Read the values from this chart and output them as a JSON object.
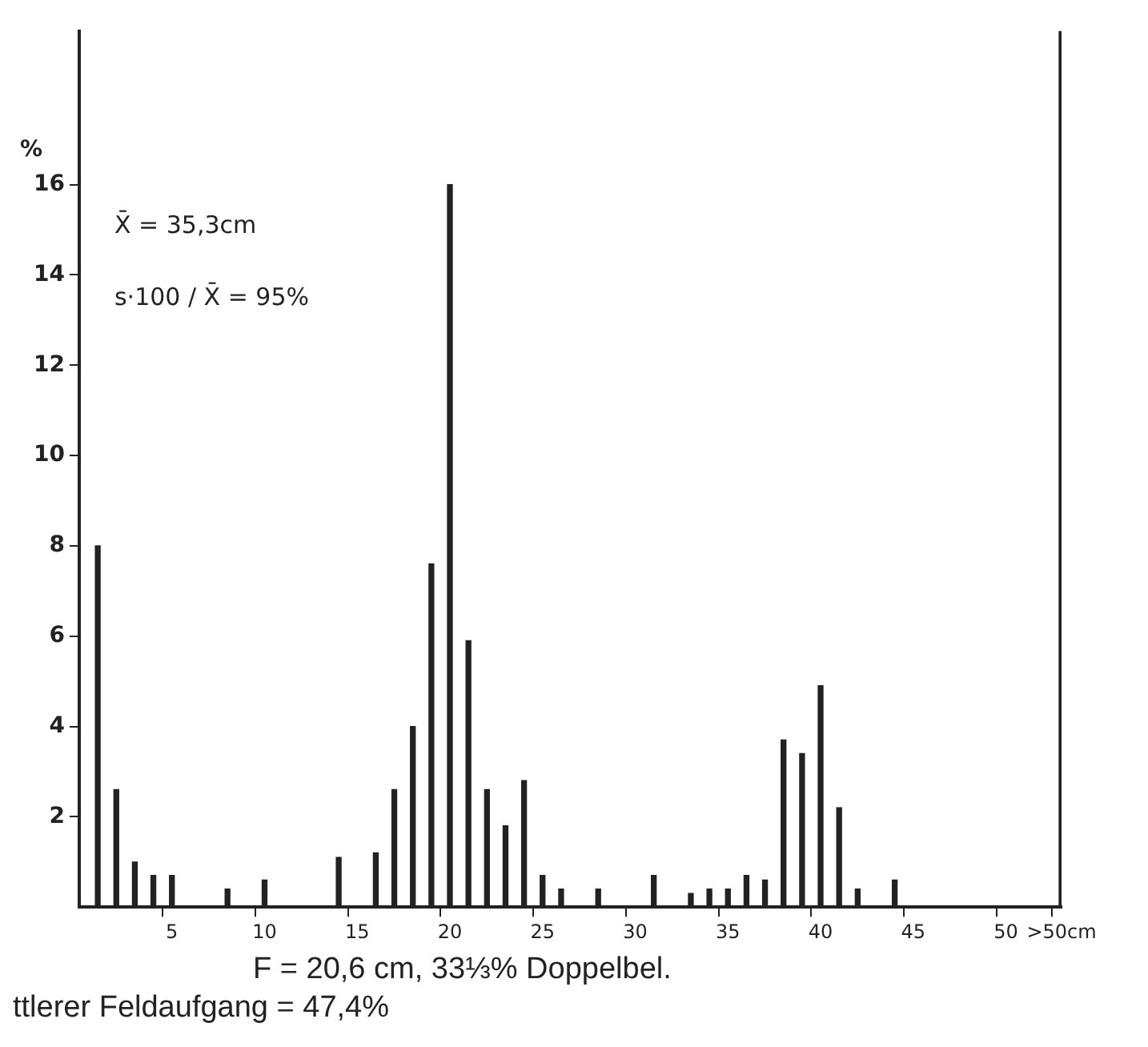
{
  "chart_data": {
    "type": "bar",
    "ylabel": "%",
    "categories": [
      null,
      null,
      null,
      null,
      null,
      "5",
      null,
      null,
      null,
      null,
      "10",
      null,
      null,
      null,
      null,
      "15",
      null,
      null,
      null,
      null,
      "20",
      null,
      null,
      null,
      null,
      "25",
      null,
      null,
      null,
      null,
      "30",
      null,
      null,
      null,
      null,
      "35",
      null,
      null,
      null,
      null,
      "40",
      null,
      null,
      null,
      null,
      "45",
      null,
      null,
      null,
      null,
      "50",
      null,
      null,
      ">50cm"
    ],
    "values": [
      null,
      8,
      2.6,
      1.0,
      0.7,
      0.7,
      null,
      null,
      0.4,
      null,
      0.6,
      null,
      null,
      null,
      1.1,
      null,
      1.2,
      2.6,
      4.0,
      7.6,
      16,
      5.9,
      2.6,
      1.8,
      2.8,
      0.7,
      0.4,
      null,
      0.4,
      null,
      null,
      0.7,
      null,
      0.3,
      0.4,
      0.4,
      0.7,
      0.6,
      3.7,
      3.4,
      4.9,
      2.2,
      0.4,
      null,
      0.6,
      null,
      null,
      null,
      null,
      null,
      null,
      null,
      null,
      19.4
    ],
    "color": "#222222",
    "ylim": [
      0,
      19.4
    ],
    "yticks": [
      2,
      4,
      6,
      8,
      10,
      12,
      14,
      16
    ],
    "grid": false,
    "annotations": [
      "X̄ = 35,3cm",
      "s·100 / X̄ = 95%",
      "F = 20,6 cm, 33⅓% Doppelbel.",
      "ttlerer Feldaufgang = 47,4%"
    ]
  }
}
